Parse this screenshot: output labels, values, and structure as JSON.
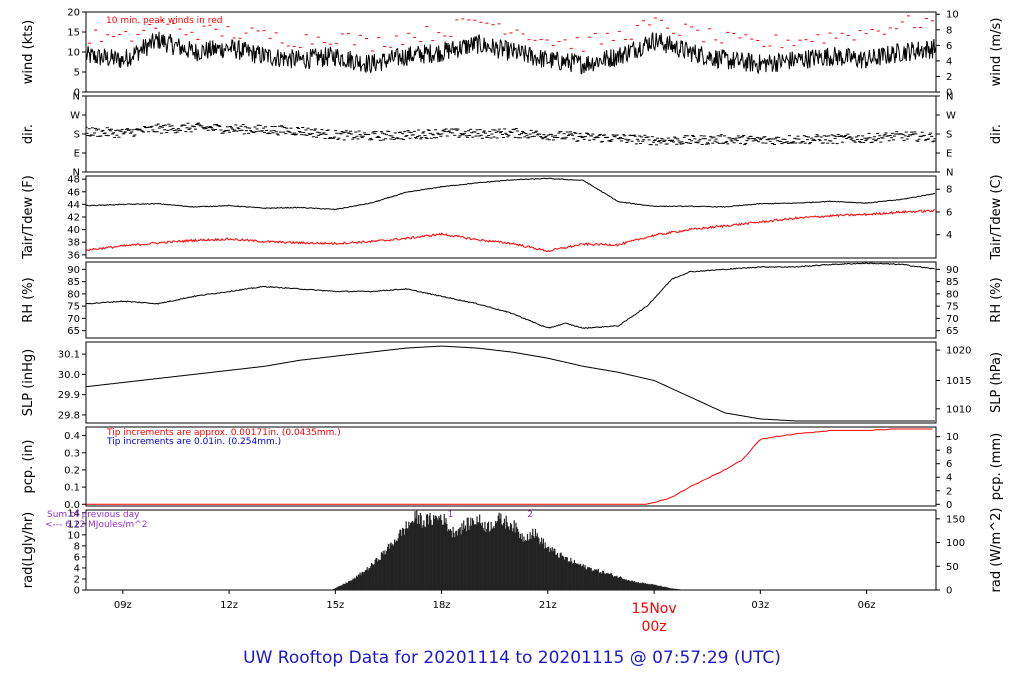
{
  "title": "UW Rooftop Data for 20201114  to  20201115 @ 07:57:29  (UTC)",
  "colors": {
    "black": "#000000",
    "red": "#ff0000",
    "blue": "#0000cc",
    "purple": "#9933cc",
    "title": "#1a1acc",
    "date": "#ff0000"
  },
  "x_axis": {
    "ticks": [
      {
        "hour": 9,
        "label": "09z"
      },
      {
        "hour": 12,
        "label": "12z"
      },
      {
        "hour": 15,
        "label": "15z"
      },
      {
        "hour": 18,
        "label": "18z"
      },
      {
        "hour": 21,
        "label": "21z"
      },
      {
        "hour": 27,
        "label": "03z"
      },
      {
        "hour": 30,
        "label": "06z"
      }
    ],
    "date_label": {
      "hour": 24,
      "line1": "15Nov",
      "line2": "00z"
    },
    "start_hour": 7.96,
    "end_hour": 31.96
  },
  "chart_data": [
    {
      "type": "line",
      "key": "wind",
      "left_label": "wind (kts)",
      "right_label": "wind (m/s)",
      "ylim": [
        0,
        20
      ],
      "left_ticks": [
        "0",
        "5",
        "10",
        "15",
        "20"
      ],
      "left_tick_values": [
        0,
        5,
        10,
        15,
        20
      ],
      "right_ticks": [
        "0",
        "2",
        "4",
        "6",
        "8",
        "10"
      ],
      "right_tick_values": [
        0,
        3.89,
        7.78,
        11.66,
        15.55,
        19.44
      ],
      "annotation": "10 min. peak winds in red",
      "series": [
        {
          "name": "wind speed",
          "color": "#000000",
          "x": [
            8,
            9,
            10,
            11,
            12,
            13,
            14,
            15,
            16,
            17,
            18,
            19,
            20,
            21,
            22,
            23,
            24,
            25,
            26,
            27,
            28,
            29,
            30,
            31,
            32
          ],
          "y": [
            9,
            8,
            13,
            10,
            11,
            9,
            8,
            9,
            7,
            9,
            10,
            12,
            10,
            8,
            7,
            9,
            13,
            10,
            8,
            7,
            8,
            9,
            8,
            10,
            11
          ]
        },
        {
          "name": "10 min peak",
          "color": "#ff0000",
          "x": [
            8,
            9,
            10,
            11,
            12,
            13,
            14,
            15,
            16,
            17,
            18,
            19,
            20,
            21,
            22,
            23,
            24,
            25,
            26,
            27,
            28,
            29,
            30,
            31,
            32
          ],
          "y": [
            14,
            13,
            17,
            15,
            15,
            14,
            13,
            14,
            12,
            14,
            15,
            18,
            16,
            13,
            12,
            14,
            17,
            15,
            13,
            12,
            13,
            14,
            15,
            17,
            18
          ]
        }
      ]
    },
    {
      "type": "scatter",
      "key": "dir",
      "left_label": "dir.",
      "right_label": "dir.",
      "ylim": [
        0,
        360
      ],
      "left_ticks": [
        "N",
        "E",
        "S",
        "W",
        "N"
      ],
      "left_tick_values": [
        0,
        90,
        180,
        270,
        360
      ],
      "right_ticks": [
        "N",
        "E",
        "S",
        "W",
        "N"
      ],
      "right_tick_values": [
        0,
        90,
        180,
        270,
        360
      ],
      "series": [
        {
          "name": "direction",
          "color": "#000000",
          "x": [
            8,
            9,
            10,
            11,
            12,
            13,
            14,
            15,
            16,
            17,
            18,
            19,
            20,
            21,
            22,
            23,
            24,
            25,
            26,
            27,
            28,
            29,
            30,
            31,
            32
          ],
          "y": [
            190,
            185,
            205,
            210,
            205,
            200,
            195,
            175,
            170,
            175,
            185,
            180,
            185,
            175,
            165,
            160,
            150,
            150,
            155,
            150,
            155,
            155,
            160,
            170,
            165
          ]
        }
      ]
    },
    {
      "type": "line",
      "key": "temp",
      "left_label": "Tair/Tdew (F)",
      "right_label": "Tair/Tdew (C)",
      "ylim": [
        35.5,
        48.5
      ],
      "left_ticks": [
        "36",
        "38",
        "40",
        "42",
        "44",
        "46",
        "48"
      ],
      "left_tick_values": [
        36,
        38,
        40,
        42,
        44,
        46,
        48
      ],
      "right_ticks": [
        "4",
        "6",
        "8"
      ],
      "right_tick_values": [
        39.2,
        42.8,
        46.4
      ],
      "series": [
        {
          "name": "Tair",
          "color": "#000000",
          "x": [
            8,
            9,
            10,
            11,
            12,
            13,
            14,
            15,
            16,
            17,
            18,
            19,
            20,
            21,
            22,
            23,
            24,
            25,
            26,
            27,
            28,
            29,
            30,
            31,
            32
          ],
          "y": [
            43.8,
            44,
            44.1,
            43.6,
            43.8,
            43.4,
            43.5,
            43.2,
            44.2,
            45.9,
            46.8,
            47.4,
            47.9,
            48.1,
            47.8,
            44.4,
            43.7,
            43.7,
            43.6,
            44.1,
            44.2,
            44.5,
            44.2,
            44.8,
            45.8
          ]
        },
        {
          "name": "Tdew",
          "color": "#ff0000",
          "x": [
            8,
            9,
            10,
            11,
            12,
            13,
            14,
            15,
            16,
            17,
            18,
            19,
            20,
            21,
            22,
            23,
            24,
            25,
            26,
            27,
            28,
            29,
            30,
            31,
            32
          ],
          "y": [
            36.8,
            37.4,
            37.9,
            38.3,
            38.5,
            38.1,
            37.9,
            37.8,
            38.1,
            38.6,
            39.3,
            38.4,
            37.8,
            36.6,
            37.7,
            37.6,
            39.1,
            40,
            40.6,
            41.2,
            41.8,
            42.2,
            42.4,
            42.8,
            43
          ]
        }
      ]
    },
    {
      "type": "line",
      "key": "rh",
      "left_label": "RH (%)",
      "right_label": "RH (%)",
      "ylim": [
        62,
        93
      ],
      "left_ticks": [
        "65",
        "70",
        "75",
        "80",
        "85",
        "90"
      ],
      "left_tick_values": [
        65,
        70,
        75,
        80,
        85,
        90
      ],
      "right_ticks": [
        "65",
        "70",
        "75",
        "80",
        "85",
        "90"
      ],
      "right_tick_values": [
        65,
        70,
        75,
        80,
        85,
        90
      ],
      "series": [
        {
          "name": "RH",
          "color": "#000000",
          "x": [
            8,
            9,
            10,
            11,
            12,
            13,
            14,
            15,
            16,
            17,
            18,
            19,
            20,
            21,
            21.5,
            22,
            23,
            23.8,
            24.5,
            25,
            26,
            27,
            28,
            29,
            30,
            31,
            32
          ],
          "y": [
            76,
            77,
            76,
            79,
            81,
            83,
            82,
            81,
            81,
            82,
            79,
            76,
            72,
            66,
            68,
            66,
            67,
            75,
            86,
            89,
            90,
            91,
            91,
            92,
            92.5,
            92,
            90
          ]
        }
      ]
    },
    {
      "type": "line",
      "key": "slp",
      "left_label": "SLP (inHg)",
      "right_label": "SLP (hPa)",
      "ylim": [
        29.76,
        30.16
      ],
      "left_ticks": [
        "29.8",
        "29.9",
        "30.0",
        "30.1"
      ],
      "left_tick_values": [
        29.8,
        29.9,
        30.0,
        30.1
      ],
      "right_ticks": [
        "1010",
        "1015",
        "1020"
      ],
      "right_tick_values": [
        29.83,
        29.97,
        30.12
      ],
      "series": [
        {
          "name": "SLP",
          "color": "#000000",
          "x": [
            8,
            9,
            10,
            11,
            12,
            13,
            14,
            15,
            16,
            17,
            18,
            19,
            20,
            21,
            22,
            23,
            24,
            25,
            26,
            27,
            28,
            29,
            30,
            31,
            32
          ],
          "y": [
            29.94,
            29.96,
            29.98,
            30.0,
            30.02,
            30.04,
            30.07,
            30.09,
            30.11,
            30.13,
            30.14,
            30.13,
            30.11,
            30.08,
            30.04,
            30.01,
            29.97,
            29.89,
            29.81,
            29.78,
            29.77,
            29.77,
            29.77,
            29.77,
            29.77
          ]
        }
      ]
    },
    {
      "type": "line",
      "key": "pcp",
      "left_label": "pcp. (in)",
      "right_label": "pcp. (mm)",
      "ylim": [
        -0.01,
        0.45
      ],
      "left_ticks": [
        "0.0",
        "0.1",
        "0.2",
        "0.3",
        "0.4"
      ],
      "left_tick_values": [
        0,
        0.1,
        0.2,
        0.3,
        0.4
      ],
      "right_ticks": [
        "0",
        "2",
        "4",
        "6",
        "8",
        "10"
      ],
      "right_tick_values": [
        0,
        0.0787,
        0.1575,
        0.2362,
        0.315,
        0.3937
      ],
      "notes": [
        {
          "text": "Tip increments are approx. 0.00171in. (0.0435mm.)",
          "color": "#ff0000"
        },
        {
          "text": "Tip increments are 0.01in. (0.254mm.)",
          "color": "#0000cc"
        }
      ],
      "series": [
        {
          "name": "precip",
          "color": "#ff0000",
          "x": [
            8,
            23.8,
            24.5,
            25,
            25.5,
            26,
            26.5,
            27,
            28,
            29,
            30,
            31,
            32
          ],
          "y": [
            0,
            0,
            0.04,
            0.1,
            0.15,
            0.2,
            0.26,
            0.38,
            0.41,
            0.43,
            0.43,
            0.44,
            0.44
          ]
        }
      ]
    },
    {
      "type": "area",
      "key": "rad",
      "left_label": "rad(Lgly/hr)",
      "right_label": "rad (W/m^2)",
      "ylim": [
        0,
        14.5
      ],
      "left_ticks": [
        "0",
        "2",
        "4",
        "6",
        "8",
        "10",
        "12",
        "14"
      ],
      "left_tick_values": [
        0,
        2,
        4,
        6,
        8,
        10,
        12,
        14
      ],
      "right_ticks": [
        "0",
        "50",
        "100",
        "150"
      ],
      "right_tick_values": [
        0,
        4.3,
        8.6,
        12.9
      ],
      "annotations": [
        {
          "text": "Sum of previous day",
          "color": "#9933cc"
        },
        {
          "text": "<--- 6.12 MJoules/m^2",
          "color": "#9933cc"
        }
      ],
      "markers": [
        {
          "hour": 18.25,
          "label": "1"
        },
        {
          "hour": 20.5,
          "label": "2"
        }
      ],
      "series": [
        {
          "name": "radiation",
          "color": "#222222",
          "x": [
            14.9,
            15.5,
            16,
            16.5,
            17,
            17.3,
            17.5,
            18,
            18.3,
            18.6,
            19,
            19.3,
            19.6,
            20,
            20.3,
            20.6,
            21,
            21.5,
            22,
            22.5,
            23,
            23.5,
            24,
            24.5,
            24.9
          ],
          "y": [
            0,
            2,
            4.5,
            8,
            12,
            14,
            13,
            14,
            11,
            12,
            13.5,
            12,
            13.5,
            12.5,
            10,
            11,
            8,
            6,
            4.5,
            3.5,
            2.5,
            1.5,
            1,
            0.3,
            0
          ]
        }
      ]
    }
  ]
}
